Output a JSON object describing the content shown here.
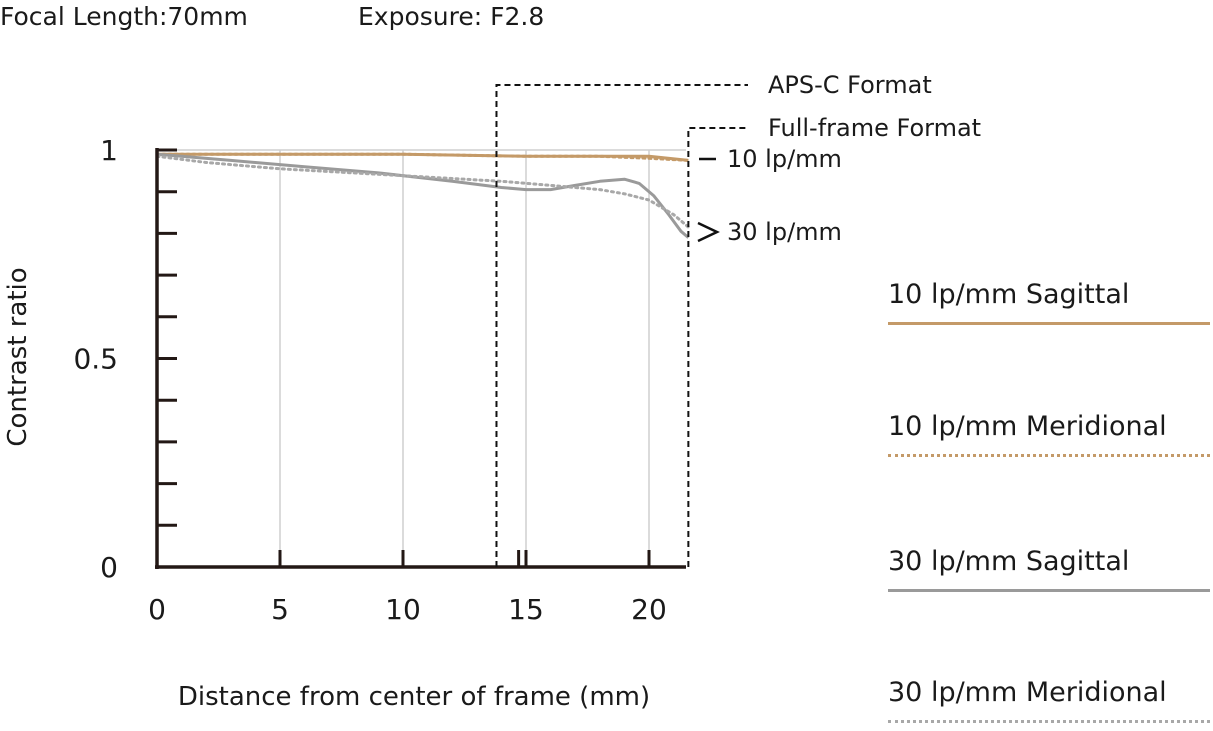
{
  "header": {
    "focal_length": "Focal Length:70mm",
    "exposure": "Exposure: F2.8"
  },
  "colors": {
    "sagittal_10": "#c49a68",
    "meridional_10": "#c49a68",
    "sagittal_30": "#9a9a9a",
    "meridional_30": "#a8a8a8",
    "axis": "#231815",
    "grid": "#cfcfcf"
  },
  "chart_data": {
    "type": "line",
    "xlabel": "Distance from center of frame (mm)",
    "ylabel": "Contrast ratio",
    "xlim": [
      0,
      21.6
    ],
    "ylim": [
      0,
      1
    ],
    "x_ticks": [
      0,
      5,
      10,
      15,
      20
    ],
    "y_tick_labels": [
      {
        "value": 1,
        "label": "1"
      },
      {
        "value": 0.5,
        "label": "0.5"
      },
      {
        "value": 0,
        "label": "0"
      }
    ],
    "y_minor_ticks": [
      0.1,
      0.2,
      0.3,
      0.4,
      0.5,
      0.6,
      0.7,
      0.8,
      0.9,
      1.0
    ],
    "grid": true,
    "format_markers": [
      {
        "name": "APS-C Format",
        "x": 13.8
      },
      {
        "name": "Full-frame Format",
        "x": 21.6
      }
    ],
    "annotations": [
      "10 lp/mm",
      "30 lp/mm"
    ],
    "series": [
      {
        "name": "10 lp/mm Sagittal",
        "style": "solid",
        "color": "#c49a68",
        "x": [
          0,
          5,
          10,
          15,
          18,
          20,
          21.6
        ],
        "y": [
          0.99,
          0.99,
          0.99,
          0.985,
          0.985,
          0.985,
          0.975
        ]
      },
      {
        "name": "10 lp/mm Meridional",
        "style": "dotted",
        "color": "#c49a68",
        "x": [
          0,
          5,
          10,
          15,
          18,
          20,
          21.6
        ],
        "y": [
          0.99,
          0.99,
          0.99,
          0.985,
          0.985,
          0.98,
          0.975
        ]
      },
      {
        "name": "30 lp/mm Sagittal",
        "style": "solid",
        "color": "#9a9a9a",
        "x": [
          0,
          3,
          6,
          9,
          12,
          14,
          15,
          16,
          17,
          18,
          19,
          19.6,
          20.2,
          20.8,
          21.3,
          21.6
        ],
        "y": [
          0.99,
          0.975,
          0.96,
          0.945,
          0.925,
          0.91,
          0.905,
          0.905,
          0.915,
          0.925,
          0.93,
          0.92,
          0.89,
          0.845,
          0.805,
          0.79
        ]
      },
      {
        "name": "30 lp/mm Meridional",
        "style": "dotted",
        "color": "#a8a8a8",
        "x": [
          0,
          2,
          5,
          8,
          11,
          14,
          16,
          18,
          19,
          20,
          21,
          21.6
        ],
        "y": [
          0.985,
          0.97,
          0.955,
          0.945,
          0.935,
          0.925,
          0.915,
          0.905,
          0.895,
          0.88,
          0.845,
          0.815
        ]
      }
    ]
  }
}
